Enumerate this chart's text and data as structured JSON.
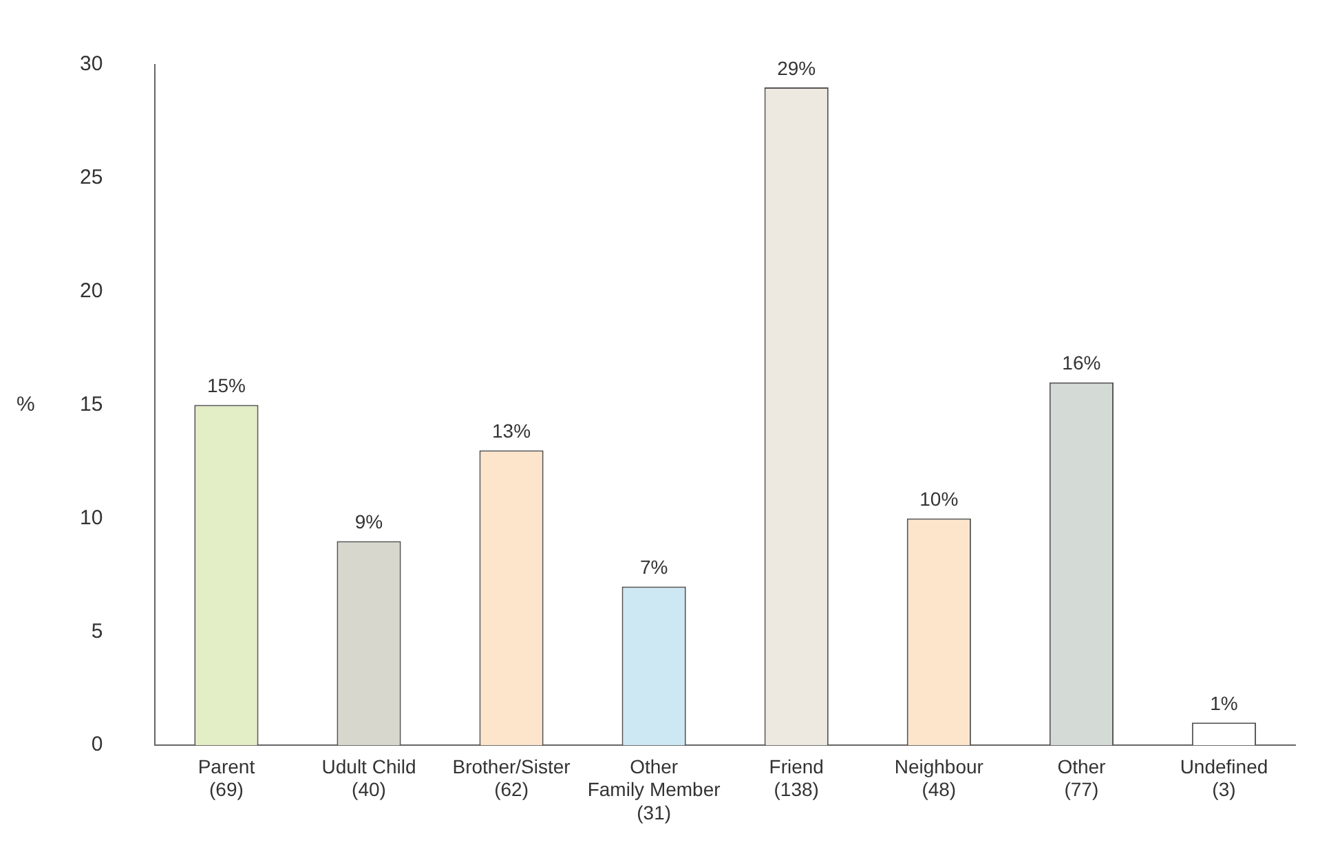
{
  "chart_data": {
    "type": "bar",
    "ylabel": "%",
    "categories": [
      "Parent\n(69)",
      "Udult Child\n(40)",
      "Brother/Sister\n(62)",
      "Other\nFamily Member\n(31)",
      "Friend\n(138)",
      "Neighbour\n(48)",
      "Other\n(77)",
      "Undefined\n(3)"
    ],
    "values": [
      15,
      9,
      13,
      7,
      29,
      10,
      16,
      1
    ],
    "colors": [
      "#e3edc6",
      "#d7d7cd",
      "#fde5cc",
      "#cde8f3",
      "#eee9e0",
      "#fde5cc",
      "#d4dbd7",
      "#ffffff"
    ],
    "value_labels": [
      "15%",
      "9%",
      "13%",
      "7%",
      "29%",
      "10%",
      "16%",
      "1%"
    ],
    "ylim": [
      0,
      30
    ],
    "yticks": [
      0,
      5,
      10,
      15,
      20,
      25,
      30
    ],
    "grid": false,
    "legend": false
  }
}
